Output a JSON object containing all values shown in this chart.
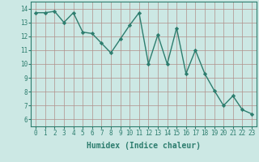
{
  "x": [
    0,
    1,
    2,
    3,
    4,
    5,
    6,
    7,
    8,
    9,
    10,
    11,
    12,
    13,
    14,
    15,
    16,
    17,
    18,
    19,
    20,
    21,
    22,
    23
  ],
  "y": [
    13.7,
    13.7,
    13.8,
    13.0,
    13.7,
    12.3,
    12.2,
    11.5,
    10.8,
    11.8,
    12.8,
    13.7,
    10.0,
    12.1,
    10.0,
    12.6,
    9.3,
    11.0,
    9.3,
    8.1,
    7.0,
    7.7,
    6.7,
    6.4
  ],
  "line_color": "#2d7d6e",
  "marker": "D",
  "marker_size": 2.2,
  "bg_color": "#cce8e4",
  "grid_color": "#b0908a",
  "tick_color": "#2d7d6e",
  "xlabel": "Humidex (Indice chaleur)",
  "ylim": [
    5.5,
    14.5
  ],
  "xlim": [
    -0.5,
    23.5
  ],
  "yticks": [
    6,
    7,
    8,
    9,
    10,
    11,
    12,
    13,
    14
  ],
  "xticks": [
    0,
    1,
    2,
    3,
    4,
    5,
    6,
    7,
    8,
    9,
    10,
    11,
    12,
    13,
    14,
    15,
    16,
    17,
    18,
    19,
    20,
    21,
    22,
    23
  ],
  "tick_fontsize": 5.5,
  "xlabel_fontsize": 7.0,
  "linewidth": 1.0
}
